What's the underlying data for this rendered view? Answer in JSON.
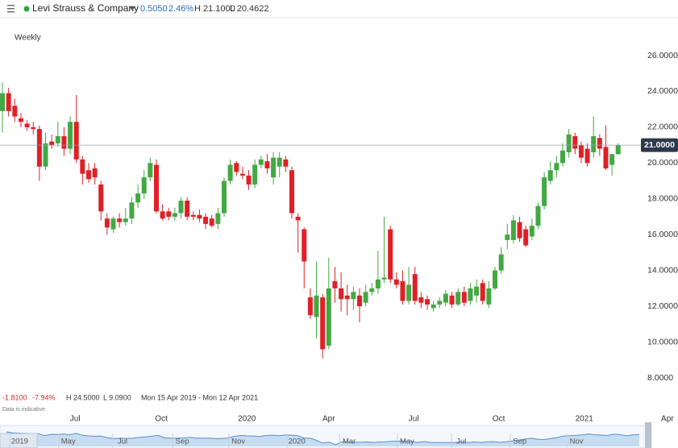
{
  "header": {
    "title": "Levi Strauss & Company",
    "change": "0.5050",
    "change_pct": "2.46%",
    "high": "H 21.1000",
    "low": "L 20.4622"
  },
  "footer": {
    "change": "-1.8100",
    "change_pct": "-7.94%",
    "high": "H 24.5000",
    "low": "L 9.0900",
    "range": "Mon 15 Apr 2019 - Mon 12 Apr 2021",
    "note": "Data is indicative"
  },
  "chart_data": {
    "type": "candlestick",
    "subtitle": "Weekly",
    "up_color": "#43a843",
    "down_color": "#df2127",
    "open": [
      22.9,
      23.9,
      23.2,
      22.5,
      22.2,
      22.0,
      21.9,
      19.8,
      21.2,
      21.1,
      21.5,
      20.8,
      22.3,
      20.2,
      19.6,
      19.7,
      18.8,
      16.9,
      16.3,
      16.9,
      16.7,
      16.9,
      17.8,
      18.3,
      19.2,
      19.9,
      17.3,
      17.3,
      17.0,
      17.2,
      17.9,
      17.1,
      17.1,
      17.0,
      16.9,
      16.6,
      17.2,
      19.0,
      20.0,
      19.4,
      19.3,
      18.8,
      19.9,
      20.1,
      19.2,
      19.8,
      20.2,
      19.6,
      17.0,
      16.3,
      12.5,
      11.4,
      12.5,
      9.8,
      13.4,
      13.0,
      12.6,
      12.4,
      12.6,
      12.2,
      12.8,
      13.0,
      13.5,
      16.3,
      13.5,
      13.4,
      12.3,
      13.8,
      12.5,
      12.4,
      11.9,
      12.1,
      12.2,
      12.6,
      12.1,
      12.8,
      12.3,
      12.6,
      13.3,
      12.1,
      13.0,
      14.0,
      15.7,
      15.7,
      16.7,
      16.3,
      15.9,
      16.5,
      17.6,
      19.0,
      19.6,
      20.0,
      20.6,
      21.5,
      21.0,
      20.8,
      20.6,
      21.4,
      20.9,
      19.9,
      20.5
    ],
    "high": [
      24.5,
      24.2,
      23.6,
      22.8,
      22.4,
      22.3,
      22.1,
      21.7,
      21.6,
      22.3,
      22.0,
      22.6,
      23.8,
      20.4,
      20.0,
      20.0,
      19.0,
      17.2,
      17.0,
      17.2,
      17.5,
      18.1,
      18.8,
      19.6,
      20.3,
      20.2,
      17.7,
      17.5,
      17.5,
      18.1,
      18.1,
      17.3,
      17.4,
      17.2,
      17.1,
      17.5,
      19.2,
      20.2,
      20.1,
      19.8,
      19.6,
      20.2,
      20.4,
      20.5,
      20.6,
      20.6,
      20.4,
      19.8,
      17.2,
      16.4,
      13.0,
      14.5,
      12.7,
      14.7,
      14.2,
      13.9,
      13.2,
      13.1,
      13.0,
      13.2,
      13.3,
      15.1,
      17.0,
      16.5,
      13.9,
      14.0,
      14.2,
      14.2,
      12.8,
      12.6,
      12.3,
      12.5,
      12.9,
      12.8,
      13.0,
      13.1,
      13.3,
      13.5,
      13.5,
      13.4,
      14.2,
      15.3,
      16.6,
      17.1,
      17.0,
      16.5,
      16.9,
      17.8,
      19.5,
      20.1,
      20.4,
      21.1,
      21.9,
      21.7,
      21.2,
      21.1,
      22.6,
      21.6,
      22.1,
      20.5,
      21.1
    ],
    "low": [
      21.7,
      22.6,
      22.3,
      22.0,
      21.8,
      21.6,
      19.0,
      19.6,
      20.8,
      20.9,
      20.4,
      20.5,
      20.0,
      18.8,
      18.9,
      18.8,
      16.8,
      16.0,
      16.1,
      16.4,
      16.5,
      16.6,
      17.5,
      18.0,
      19.0,
      17.2,
      16.8,
      16.8,
      16.8,
      16.9,
      16.8,
      16.8,
      16.7,
      16.3,
      16.4,
      16.3,
      17.0,
      18.8,
      19.3,
      19.1,
      18.5,
      18.6,
      19.7,
      19.4,
      18.8,
      19.2,
      19.5,
      16.9,
      15.0,
      13.0,
      11.3,
      10.2,
      9.09,
      9.6,
      12.2,
      11.7,
      11.5,
      11.8,
      11.1,
      12.0,
      12.6,
      12.7,
      13.3,
      13.3,
      13.0,
      12.1,
      12.1,
      12.1,
      11.9,
      11.8,
      11.7,
      11.9,
      12.0,
      11.9,
      12.0,
      12.0,
      12.1,
      12.2,
      12.1,
      11.9,
      12.9,
      13.8,
      15.2,
      15.5,
      15.6,
      15.3,
      15.7,
      16.3,
      17.4,
      18.8,
      19.2,
      19.8,
      20.3,
      20.5,
      20.0,
      19.8,
      20.3,
      20.4,
      19.6,
      19.3,
      20.4622
    ],
    "close": [
      23.9,
      22.9,
      22.6,
      22.3,
      22.0,
      21.9,
      19.8,
      21.1,
      21.0,
      21.5,
      20.8,
      22.3,
      20.2,
      19.4,
      19.1,
      19.2,
      17.3,
      16.4,
      16.9,
      16.7,
      16.9,
      17.8,
      18.3,
      19.2,
      20.0,
      17.3,
      16.9,
      17.0,
      17.2,
      17.9,
      17.0,
      17.0,
      16.9,
      16.6,
      16.5,
      17.2,
      19.0,
      19.9,
      19.5,
      19.3,
      18.8,
      19.9,
      20.2,
      19.7,
      20.3,
      20.3,
      19.8,
      17.2,
      16.8,
      14.5,
      11.5,
      12.6,
      9.6,
      13.0,
      13.0,
      12.4,
      12.4,
      12.8,
      12.0,
      12.8,
      13.0,
      13.5,
      13.6,
      13.5,
      13.2,
      12.3,
      13.2,
      12.3,
      12.2,
      12.1,
      12.1,
      12.3,
      12.7,
      12.1,
      12.8,
      12.2,
      13.0,
      13.1,
      12.3,
      13.0,
      14.0,
      14.9,
      16.0,
      16.8,
      15.8,
      15.4,
      16.5,
      17.6,
      19.2,
      19.6,
      20.0,
      20.7,
      21.6,
      20.8,
      20.3,
      20.0,
      21.5,
      20.8,
      19.7,
      20.5,
      21.0
    ],
    "ylim": [
      8,
      26
    ],
    "yticks": [
      {
        "value": 8,
        "label": "8.0000"
      },
      {
        "value": 10,
        "label": "10.0000"
      },
      {
        "value": 12,
        "label": "12.0000"
      },
      {
        "value": 14,
        "label": "14.0000"
      },
      {
        "value": 16,
        "label": "16.0000"
      },
      {
        "value": 18,
        "label": "18.0000"
      },
      {
        "value": 20,
        "label": "20.0000"
      },
      {
        "value": 22,
        "label": "22.0000"
      },
      {
        "value": 24,
        "label": "24.0000"
      },
      {
        "value": 26,
        "label": "26.0000"
      }
    ],
    "xlim": [
      -0.4,
      103.7
    ],
    "xticks": [
      {
        "value": 11.8,
        "label": "Jul"
      },
      {
        "value": 25.8,
        "label": "Oct"
      },
      {
        "value": 39.7,
        "label": "2020"
      },
      {
        "value": 53.0,
        "label": "Apr"
      },
      {
        "value": 66.8,
        "label": "Jul"
      },
      {
        "value": 80.6,
        "label": "Oct"
      },
      {
        "value": 94.5,
        "label": "2021"
      },
      {
        "value": 108,
        "label": "Apr"
      }
    ],
    "nav_ticks": [
      {
        "value": 2.8,
        "label": "2019"
      },
      {
        "value": 10.7,
        "label": "May"
      },
      {
        "value": 19.5,
        "label": "Jul"
      },
      {
        "value": 29.2,
        "label": "Sep"
      },
      {
        "value": 38.3,
        "label": "Nov"
      },
      {
        "value": 47.8,
        "label": "2020"
      },
      {
        "value": 56.3,
        "label": "Mar"
      },
      {
        "value": 65.7,
        "label": "May"
      },
      {
        "value": 74.5,
        "label": "Jul"
      },
      {
        "value": 84.0,
        "label": "Sep"
      },
      {
        "value": 93.2,
        "label": "Nov"
      }
    ],
    "last_price": {
      "value": 21,
      "label": "21.0000"
    }
  }
}
